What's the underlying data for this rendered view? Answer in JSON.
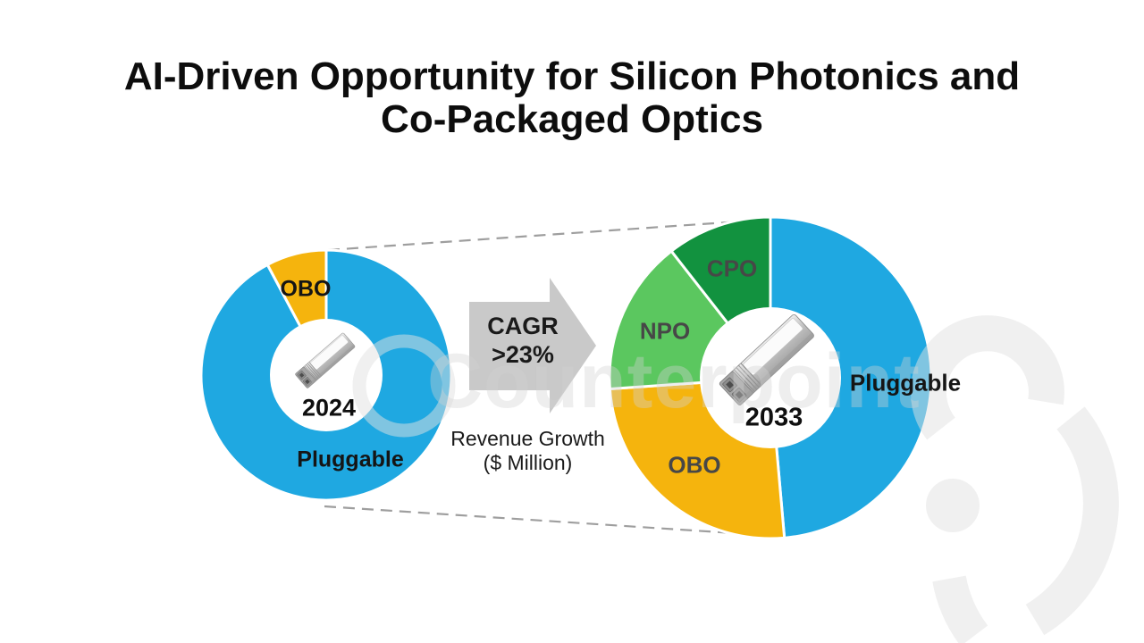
{
  "title": {
    "line1": "AI-Driven Opportunity for Silicon Photonics and",
    "line2": "Co-Packaged Optics"
  },
  "arrow": {
    "label_line1": "CAGR",
    "label_line2": ">23%"
  },
  "note": {
    "line1": "Revenue Growth",
    "line2": "($ Million)"
  },
  "watermark": {
    "text": "Counterpoint"
  },
  "colors": {
    "pluggable_blue": "#1FA8E1",
    "obo_yellow": "#F5B40D",
    "npo_light_green": "#5BC75F",
    "cpo_dark_green": "#12923F",
    "arrow_gray": "#C9C9C9",
    "dashed_line_gray": "#9E9E9E"
  },
  "chart_data": [
    {
      "type": "pie",
      "style": "donut",
      "title": "2024",
      "center_label": "2024",
      "legend_position": "on-slices",
      "segments": [
        {
          "label": "Pluggable",
          "value_pct": 92,
          "start_deg": 0,
          "end_deg": 332,
          "color": "#1FA8E1"
        },
        {
          "label": "OBO",
          "value_pct": 8,
          "start_deg": 332,
          "end_deg": 360,
          "color": "#F5B40D"
        }
      ]
    },
    {
      "type": "pie",
      "style": "donut",
      "title": "2033",
      "center_label": "2033",
      "legend_position": "on-slices",
      "segments": [
        {
          "label": "Pluggable",
          "value_pct": 49,
          "start_deg": 0,
          "end_deg": 175,
          "color": "#1FA8E1"
        },
        {
          "label": "OBO",
          "value_pct": 25,
          "start_deg": 175,
          "end_deg": 266,
          "color": "#F5B40D"
        },
        {
          "label": "NPO",
          "value_pct": 16,
          "start_deg": 266,
          "end_deg": 322,
          "color": "#5BC75F"
        },
        {
          "label": "CPO",
          "value_pct": 10,
          "start_deg": 322,
          "end_deg": 360,
          "color": "#12923F"
        }
      ]
    }
  ]
}
